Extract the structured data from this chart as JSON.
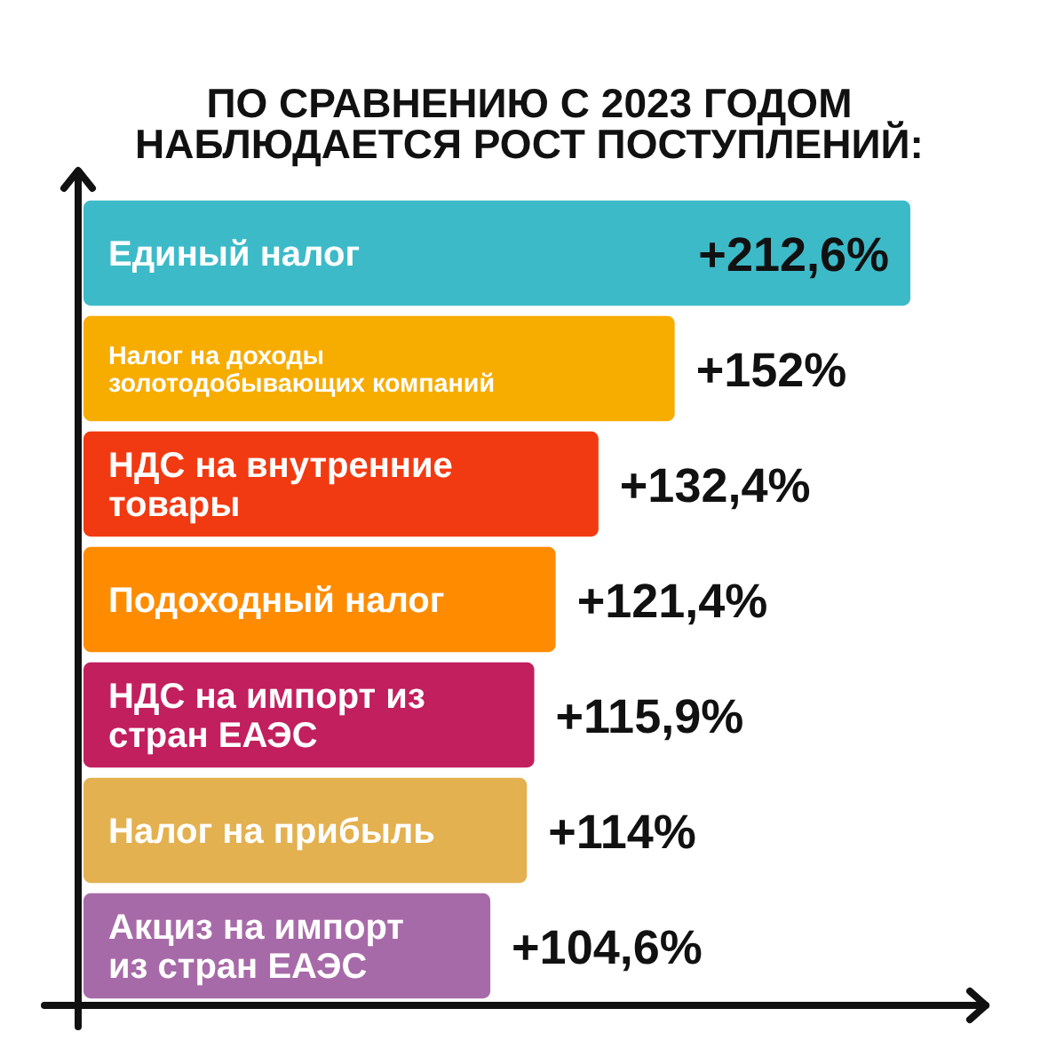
{
  "chart_data": {
    "type": "bar",
    "orientation": "horizontal",
    "title": "ПО СРАВНЕНИЮ С 2023 ГОДОМ\nНАБЛЮДАЕТСЯ РОСТ ПОСТУПЛЕНИЙ:",
    "categories": [
      "Единый налог",
      "Налог на доходы\nзолотодобывающих компаний",
      "НДС на внутренние\nтовары",
      "Подоходный налог",
      "НДС на импорт из\nстран ЕАЭС",
      "Налог на прибыль",
      "Акциз на импорт\nиз стран ЕАЭС"
    ],
    "values": [
      212.6,
      152,
      132.4,
      121.4,
      115.9,
      114,
      104.6
    ],
    "colors": [
      "#3dbac8",
      "#f7ac00",
      "#f23a12",
      "#ff8c00",
      "#c21f5f",
      "#e3b150",
      "#a76aa8"
    ],
    "value_labels": [
      "+212,6%",
      "+152%",
      "+132,4%",
      "+121,4%",
      "+115,9%",
      "+114%",
      "+104,6%"
    ],
    "xlim": [
      0,
      232
    ],
    "tick_labels": "y"
  }
}
